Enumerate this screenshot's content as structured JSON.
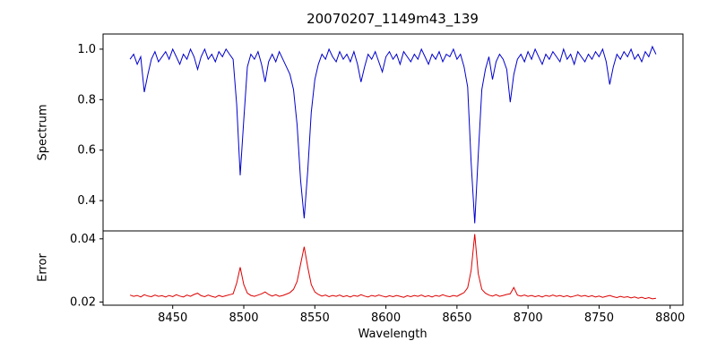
{
  "title": "20070207_1149m43_139",
  "chart_data": {
    "type": "line",
    "title": "20070207_1149m43_139",
    "xlabel": "Wavelength",
    "x_start": 8420,
    "x_step": 2.5,
    "xlim": [
      8401,
      8809
    ],
    "xticks": [
      8450,
      8500,
      8550,
      8600,
      8650,
      8700,
      8750,
      8800
    ],
    "xtick_labels": [
      "8450",
      "8500",
      "8550",
      "8600",
      "8650",
      "8700",
      "8750",
      "8800"
    ],
    "grid": false,
    "legend": "none",
    "panels": [
      {
        "name": "spectrum",
        "ylabel": "Spectrum",
        "ylim": [
          0.28,
          1.06
        ],
        "yticks": [
          0.4,
          0.6,
          0.8,
          1.0
        ],
        "ytick_labels": [
          "0.4",
          "0.6",
          "0.8",
          "1.0"
        ],
        "color": "#0000cc",
        "values": [
          0.96,
          0.98,
          0.94,
          0.97,
          0.83,
          0.9,
          0.96,
          0.99,
          0.95,
          0.97,
          0.99,
          0.96,
          1.0,
          0.97,
          0.94,
          0.98,
          0.96,
          1.0,
          0.97,
          0.92,
          0.97,
          1.0,
          0.96,
          0.98,
          0.95,
          0.99,
          0.97,
          1.0,
          0.98,
          0.96,
          0.78,
          0.5,
          0.72,
          0.93,
          0.98,
          0.96,
          0.99,
          0.94,
          0.87,
          0.95,
          0.98,
          0.95,
          0.99,
          0.96,
          0.93,
          0.9,
          0.84,
          0.7,
          0.48,
          0.33,
          0.52,
          0.75,
          0.88,
          0.94,
          0.98,
          0.96,
          1.0,
          0.97,
          0.95,
          0.99,
          0.96,
          0.98,
          0.95,
          0.99,
          0.94,
          0.87,
          0.93,
          0.98,
          0.96,
          0.99,
          0.95,
          0.91,
          0.97,
          0.99,
          0.96,
          0.98,
          0.94,
          0.99,
          0.97,
          0.95,
          0.98,
          0.96,
          1.0,
          0.97,
          0.94,
          0.98,
          0.96,
          0.99,
          0.95,
          0.98,
          0.97,
          1.0,
          0.96,
          0.98,
          0.93,
          0.85,
          0.55,
          0.31,
          0.58,
          0.84,
          0.92,
          0.97,
          0.88,
          0.95,
          0.98,
          0.96,
          0.92,
          0.79,
          0.9,
          0.96,
          0.98,
          0.95,
          0.99,
          0.96,
          1.0,
          0.97,
          0.94,
          0.98,
          0.96,
          0.99,
          0.97,
          0.95,
          1.0,
          0.96,
          0.98,
          0.94,
          0.99,
          0.97,
          0.95,
          0.98,
          0.96,
          0.99,
          0.97,
          1.0,
          0.95,
          0.86,
          0.93,
          0.98,
          0.96,
          0.99,
          0.97,
          1.0,
          0.96,
          0.98,
          0.95,
          0.99,
          0.97,
          1.01,
          0.98
        ]
      },
      {
        "name": "error",
        "ylabel": "Error",
        "ylim": [
          0.019,
          0.0425
        ],
        "yticks": [
          0.02,
          0.04
        ],
        "ytick_labels": [
          "0.02",
          "0.04"
        ],
        "color": "#dd0000",
        "values": [
          0.0222,
          0.0218,
          0.0221,
          0.0216,
          0.0223,
          0.0219,
          0.0217,
          0.0222,
          0.0218,
          0.022,
          0.0216,
          0.0221,
          0.0217,
          0.0223,
          0.0219,
          0.0216,
          0.0222,
          0.0218,
          0.0224,
          0.0228,
          0.022,
          0.0217,
          0.0222,
          0.0218,
          0.0215,
          0.0221,
          0.0217,
          0.022,
          0.0223,
          0.0226,
          0.026,
          0.031,
          0.0255,
          0.0228,
          0.0221,
          0.0218,
          0.0222,
          0.0226,
          0.0232,
          0.0224,
          0.0219,
          0.0223,
          0.0218,
          0.0221,
          0.0225,
          0.023,
          0.024,
          0.0265,
          0.032,
          0.0375,
          0.031,
          0.0255,
          0.0232,
          0.0224,
          0.0219,
          0.0222,
          0.0217,
          0.0221,
          0.0218,
          0.0222,
          0.0217,
          0.022,
          0.0216,
          0.0221,
          0.0218,
          0.0223,
          0.0219,
          0.0216,
          0.0221,
          0.0218,
          0.0222,
          0.0219,
          0.0216,
          0.022,
          0.0217,
          0.0221,
          0.0218,
          0.0215,
          0.022,
          0.0217,
          0.0221,
          0.0218,
          0.0222,
          0.0217,
          0.022,
          0.0216,
          0.0221,
          0.0218,
          0.0223,
          0.0219,
          0.0217,
          0.0221,
          0.0218,
          0.0224,
          0.023,
          0.0245,
          0.03,
          0.0415,
          0.029,
          0.024,
          0.0228,
          0.0222,
          0.0219,
          0.0223,
          0.0218,
          0.0221,
          0.0224,
          0.0226,
          0.0246,
          0.0222,
          0.0219,
          0.0222,
          0.0218,
          0.0221,
          0.0217,
          0.022,
          0.0216,
          0.0221,
          0.0218,
          0.0222,
          0.0218,
          0.0221,
          0.0217,
          0.022,
          0.0216,
          0.0219,
          0.0222,
          0.0218,
          0.0221,
          0.0217,
          0.022,
          0.0216,
          0.0219,
          0.0215,
          0.0218,
          0.0221,
          0.0217,
          0.0214,
          0.0218,
          0.0215,
          0.0217,
          0.0213,
          0.0216,
          0.0212,
          0.0215,
          0.0211,
          0.0214,
          0.021,
          0.0212
        ]
      }
    ]
  }
}
